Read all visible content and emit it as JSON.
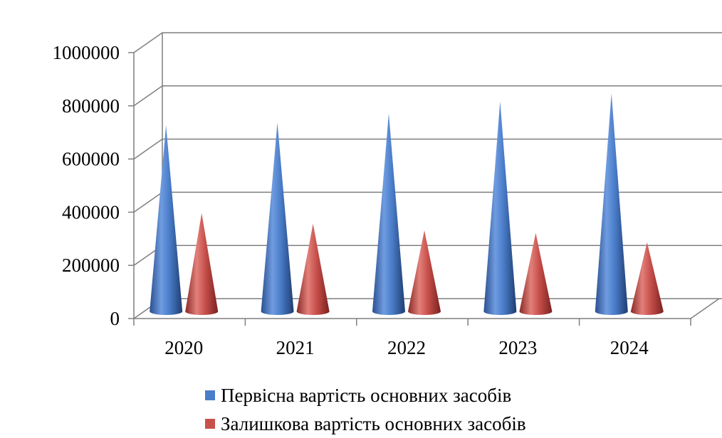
{
  "chart_data": {
    "type": "bar",
    "style": "3d-cone",
    "categories": [
      "2020",
      "2021",
      "2022",
      "2023",
      "2024"
    ],
    "series": [
      {
        "name": "Первісна вартість основних засобів",
        "color": "#4A7DC9",
        "values": [
          700000,
          710000,
          745000,
          790000,
          820000
        ]
      },
      {
        "name": "Залишкова вартість основних засобів",
        "color": "#C8504B",
        "values": [
          370000,
          330000,
          305000,
          295000,
          260000
        ]
      }
    ],
    "y_ticks": [
      "0",
      "200000",
      "400000",
      "600000",
      "800000",
      "1000000"
    ],
    "ylim": [
      0,
      1000000
    ],
    "grid": true,
    "legend_position": "bottom"
  }
}
